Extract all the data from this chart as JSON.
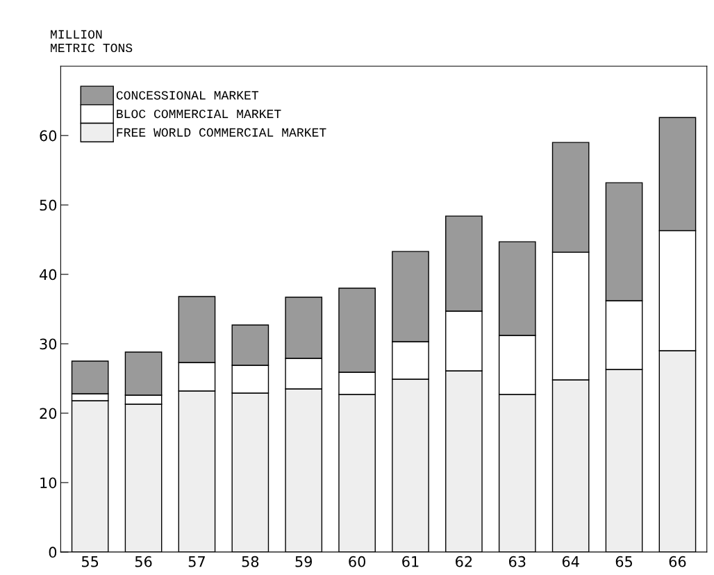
{
  "chart_data": {
    "type": "bar",
    "stacked": true,
    "ylabel": "MILLION\nMETRIC TONS",
    "categories": [
      "55",
      "56",
      "57",
      "58",
      "59",
      "60",
      "61",
      "62",
      "63",
      "64",
      "65",
      "66"
    ],
    "series": [
      {
        "name": "FREE WORLD COMMERCIAL MARKET",
        "color": "#eeeeee",
        "values": [
          21.8,
          21.3,
          23.2,
          22.9,
          23.5,
          22.7,
          24.9,
          26.1,
          22.7,
          24.8,
          26.3,
          29.0
        ]
      },
      {
        "name": "BLOC COMMERCIAL MARKET",
        "color": "#ffffff",
        "values": [
          1.0,
          1.3,
          4.1,
          4.0,
          4.4,
          3.2,
          5.4,
          8.6,
          8.5,
          18.4,
          9.9,
          17.3
        ]
      },
      {
        "name": "CONCESSIONAL MARKET",
        "color": "#9a9a9a",
        "values": [
          4.7,
          6.2,
          9.5,
          5.8,
          8.8,
          12.1,
          13.0,
          13.7,
          13.5,
          15.8,
          17.0,
          16.3
        ]
      }
    ],
    "ylim": [
      0,
      70
    ],
    "yticks": [
      0,
      10,
      20,
      30,
      40,
      50,
      60
    ],
    "grid": false,
    "legend": "top left"
  }
}
